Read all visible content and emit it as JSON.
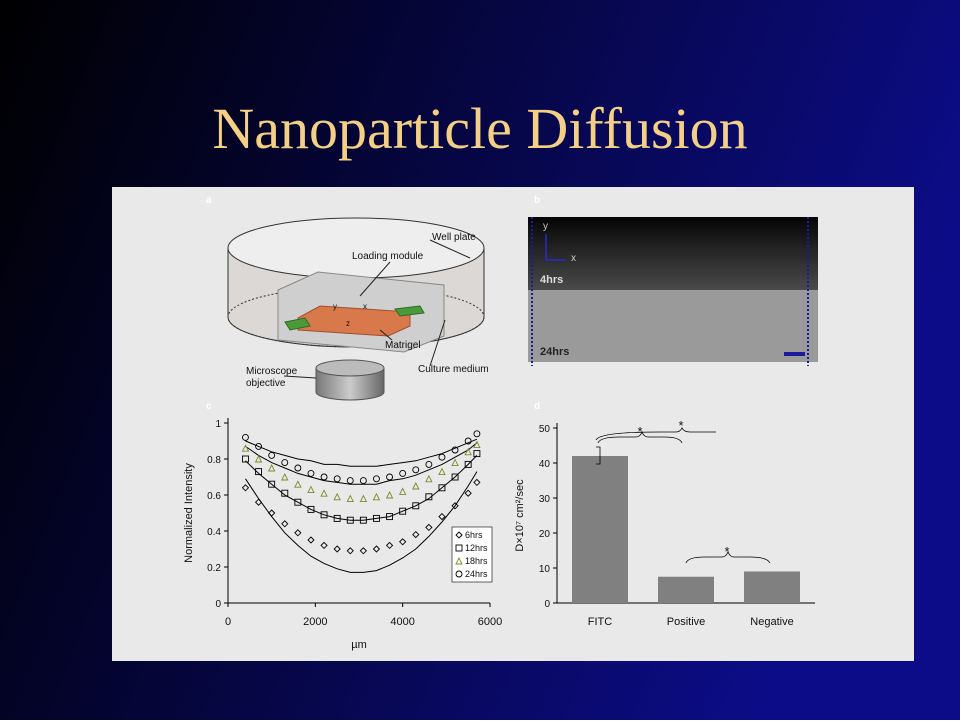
{
  "title": "Nanoparticle Diffusion",
  "panel_a": {
    "letter": "a",
    "well_plate": "Well plate",
    "loading_module": "Loading module",
    "matrigel": "Matrigel",
    "microscope_objective": [
      "Microscope",
      "objective"
    ],
    "culture_medium": "Culture medium",
    "axis_y": "y",
    "axis_x": "x",
    "axis_z": "z"
  },
  "panel_b": {
    "letter": "b",
    "axis_y": "y",
    "axis_x": "x",
    "top_label": "4hrs",
    "bottom_label": "24hrs"
  },
  "chart_data": [
    {
      "type": "scatter",
      "panel": "c",
      "xlabel": "µm",
      "ylabel": "Normalized Intensity",
      "x": [
        400,
        700,
        1000,
        1300,
        1600,
        1900,
        2200,
        2500,
        2800,
        3100,
        3400,
        3700,
        4000,
        4300,
        4600,
        4900,
        5200,
        5500,
        5700
      ],
      "series": [
        {
          "name": "6hrs",
          "marker": "diamond",
          "color": "#000000",
          "values": [
            0.64,
            0.56,
            0.5,
            0.44,
            0.39,
            0.35,
            0.32,
            0.3,
            0.29,
            0.29,
            0.3,
            0.32,
            0.34,
            0.38,
            0.42,
            0.48,
            0.54,
            0.61,
            0.67
          ]
        },
        {
          "name": "12hrs",
          "marker": "square",
          "color": "#000000",
          "values": [
            0.8,
            0.73,
            0.66,
            0.61,
            0.56,
            0.52,
            0.49,
            0.47,
            0.46,
            0.46,
            0.47,
            0.48,
            0.51,
            0.54,
            0.59,
            0.64,
            0.7,
            0.77,
            0.83
          ]
        },
        {
          "name": "18hrs",
          "marker": "triangle",
          "color": "#7a8a2a",
          "values": [
            0.86,
            0.8,
            0.75,
            0.7,
            0.66,
            0.63,
            0.61,
            0.59,
            0.58,
            0.58,
            0.59,
            0.6,
            0.62,
            0.65,
            0.69,
            0.73,
            0.78,
            0.84,
            0.88
          ]
        },
        {
          "name": "24hrs",
          "marker": "circle",
          "color": "#000000",
          "values": [
            0.92,
            0.87,
            0.82,
            0.78,
            0.75,
            0.72,
            0.7,
            0.69,
            0.68,
            0.68,
            0.69,
            0.7,
            0.72,
            0.74,
            0.77,
            0.81,
            0.85,
            0.9,
            0.94
          ]
        }
      ],
      "fits": [
        {
          "color": "#000000",
          "values": [
            0.9,
            0.87,
            0.84,
            0.82,
            0.8,
            0.79,
            0.77,
            0.77,
            0.76,
            0.76,
            0.76,
            0.77,
            0.78,
            0.79,
            0.81,
            0.83,
            0.86,
            0.89,
            0.91
          ]
        },
        {
          "color": "#000000",
          "values": [
            0.87,
            0.82,
            0.78,
            0.75,
            0.72,
            0.7,
            0.68,
            0.67,
            0.66,
            0.66,
            0.66,
            0.68,
            0.69,
            0.71,
            0.74,
            0.77,
            0.81,
            0.85,
            0.89
          ]
        },
        {
          "color": "#000000",
          "values": [
            0.79,
            0.72,
            0.66,
            0.6,
            0.56,
            0.52,
            0.49,
            0.47,
            0.46,
            0.46,
            0.47,
            0.48,
            0.51,
            0.54,
            0.58,
            0.64,
            0.7,
            0.77,
            0.82
          ]
        },
        {
          "color": "#000000",
          "values": [
            0.69,
            0.58,
            0.48,
            0.39,
            0.32,
            0.26,
            0.22,
            0.19,
            0.17,
            0.17,
            0.18,
            0.21,
            0.25,
            0.3,
            0.37,
            0.45,
            0.54,
            0.65,
            0.73
          ]
        }
      ],
      "xlim": [
        0,
        6000
      ],
      "xticks": [
        0,
        2000,
        4000,
        6000
      ],
      "ylim": [
        0,
        1
      ],
      "yticks": [
        0,
        0.2,
        0.4,
        0.6,
        0.8,
        1
      ],
      "legend": "lower-right"
    },
    {
      "type": "bar",
      "panel": "d",
      "ylabel": "D×10⁷ cm²/sec",
      "categories": [
        "FITC",
        "Positive",
        "Negative"
      ],
      "values": [
        42,
        7.5,
        9
      ],
      "color": "#808080",
      "ylim": [
        0,
        50
      ],
      "yticks": [
        0,
        10,
        20,
        30,
        40,
        50
      ],
      "annotations": [
        "*",
        "*",
        "*"
      ]
    }
  ]
}
